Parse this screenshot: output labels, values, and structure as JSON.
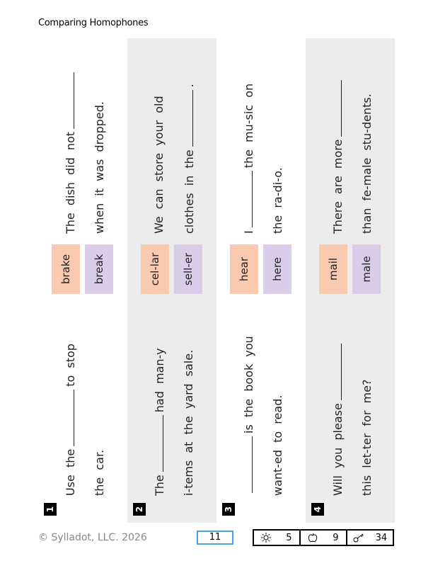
{
  "header": {
    "title": "Comparing Homophones"
  },
  "items": [
    {
      "number": 1,
      "sentence_a": [
        {
          "before": "Use the",
          "after": "to stop"
        },
        {
          "text": "the car."
        }
      ],
      "words": [
        "brake",
        "break"
      ],
      "sentence_b": [
        {
          "before": "The dish did not"
        },
        {
          "text": "when it was dropped."
        }
      ]
    },
    {
      "number": 2,
      "sentence_a": [
        {
          "before": "The",
          "after": "had man-y"
        },
        {
          "text": "i-tems at the yard sale."
        }
      ],
      "words": [
        "cel-lar",
        "sell-er"
      ],
      "sentence_b": [
        {
          "text": "We can store your old"
        },
        {
          "before": "clothes in the",
          "after": "."
        }
      ]
    },
    {
      "number": 3,
      "sentence_a": [
        {
          "after": "is the book you"
        },
        {
          "text": "want-ed to read."
        }
      ],
      "words": [
        "hear",
        "here"
      ],
      "sentence_b": [
        {
          "before": "I",
          "after": "the mu-sic on"
        },
        {
          "text": "the ra-di-o."
        }
      ]
    },
    {
      "number": 4,
      "sentence_a": [
        {
          "before": "Will you please"
        },
        {
          "text": "this let-ter for me?"
        }
      ],
      "words": [
        "mail",
        "male"
      ],
      "sentence_b": [
        {
          "before": "There are more"
        },
        {
          "text": "than fe-male stu-dents."
        }
      ]
    }
  ],
  "footer": {
    "copyright": "© Sylladot, LLC.  2026",
    "page": 11,
    "stats": [
      5,
      9,
      34
    ]
  }
}
